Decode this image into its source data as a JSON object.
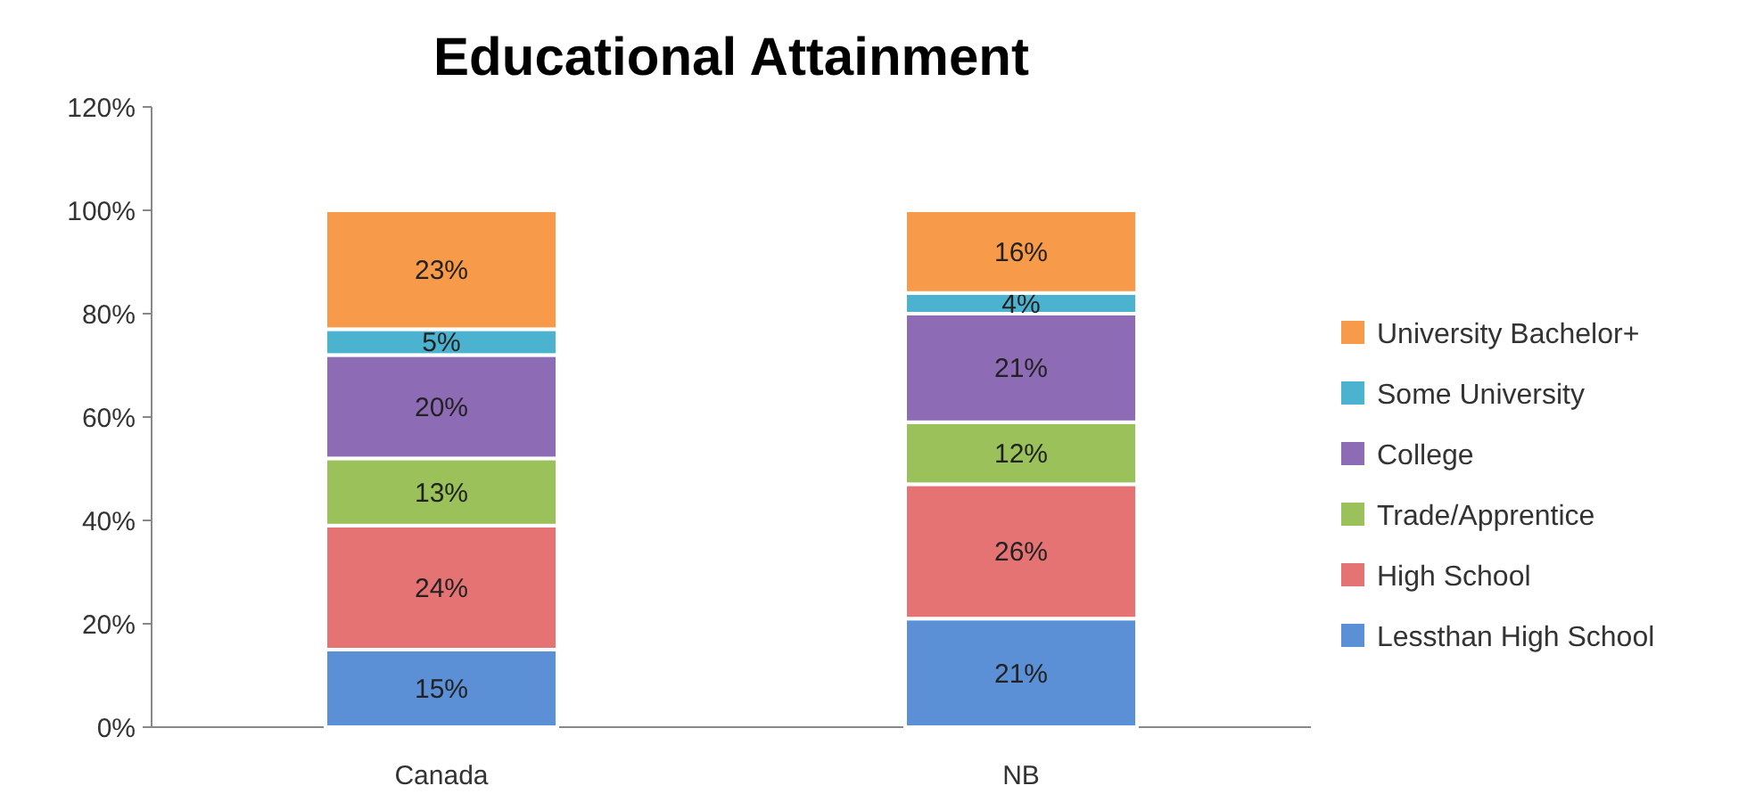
{
  "chart_data": {
    "type": "bar",
    "title": "Educational Attainment",
    "categories": [
      "Canada",
      "NB"
    ],
    "stacked": true,
    "legend": "right",
    "grid": false,
    "series": [
      {
        "name": "Lessthan High School",
        "color": "#5b8fd6",
        "values": [
          15,
          21
        ],
        "value_labels": [
          "15%",
          "21%"
        ]
      },
      {
        "name": "High School",
        "color": "#e57373",
        "values": [
          24,
          26
        ],
        "value_labels": [
          "24%",
          "26%"
        ]
      },
      {
        "name": "Trade/Apprentice",
        "color": "#9bc25a",
        "values": [
          13,
          12
        ],
        "value_labels": [
          "13%",
          "12%"
        ]
      },
      {
        "name": "College",
        "color": "#8e6bb5",
        "values": [
          20,
          21
        ],
        "value_labels": [
          "20%",
          "21%"
        ]
      },
      {
        "name": "Some University",
        "color": "#4bb3cf",
        "values": [
          5,
          4
        ],
        "value_labels": [
          "5%",
          "4%"
        ]
      },
      {
        "name": "University Bachelor+",
        "color": "#f79a4a",
        "values": [
          23,
          16
        ],
        "value_labels": [
          "23%",
          "16%"
        ]
      }
    ],
    "ylim": [
      0,
      120
    ],
    "yticks": [
      {
        "value": 0,
        "label": "0%"
      },
      {
        "value": 20,
        "label": "20%"
      },
      {
        "value": 40,
        "label": "40%"
      },
      {
        "value": 60,
        "label": "60%"
      },
      {
        "value": 80,
        "label": "80%"
      },
      {
        "value": 100,
        "label": "100%"
      },
      {
        "value": 120,
        "label": "120%"
      }
    ]
  }
}
